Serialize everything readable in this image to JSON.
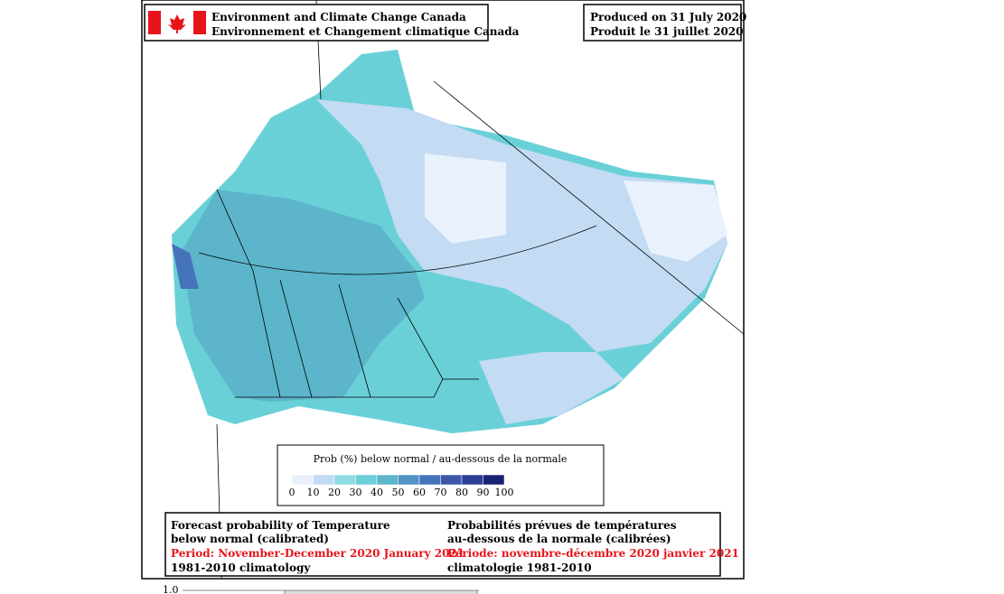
{
  "header": {
    "agency_en": "Environment and Climate Change Canada",
    "agency_fr": "Environnement et Changement climatique Canada",
    "produced_en": "Produced on 31 July 2020",
    "produced_fr": "Produit le 31 juillet 2020"
  },
  "legend": {
    "title": "Prob (%) below normal / au-dessous de la normale",
    "ticks": [
      0,
      10,
      20,
      30,
      40,
      50,
      60,
      70,
      80,
      90,
      100
    ],
    "colors": [
      "#e9f2fc",
      "#c3dbf3",
      "#8fdde3",
      "#6ad0d8",
      "#5cb5cb",
      "#5294c6",
      "#4674bb",
      "#3b58aa",
      "#2e3e97",
      "#1b2272"
    ]
  },
  "caption": {
    "en": [
      "Forecast probability of Temperature",
      "below normal (calibrated)",
      "Period: November-December 2020 January 2021",
      "1981-2010 climatology"
    ],
    "fr": [
      "Probabilités prévues de températures",
      "au-dessous de la normale (calibrées)",
      "Période: novembre-décembre 2020 janvier 2021",
      "climatologie 1981-2010"
    ]
  },
  "footer": {
    "axis_label": "1.0"
  }
}
